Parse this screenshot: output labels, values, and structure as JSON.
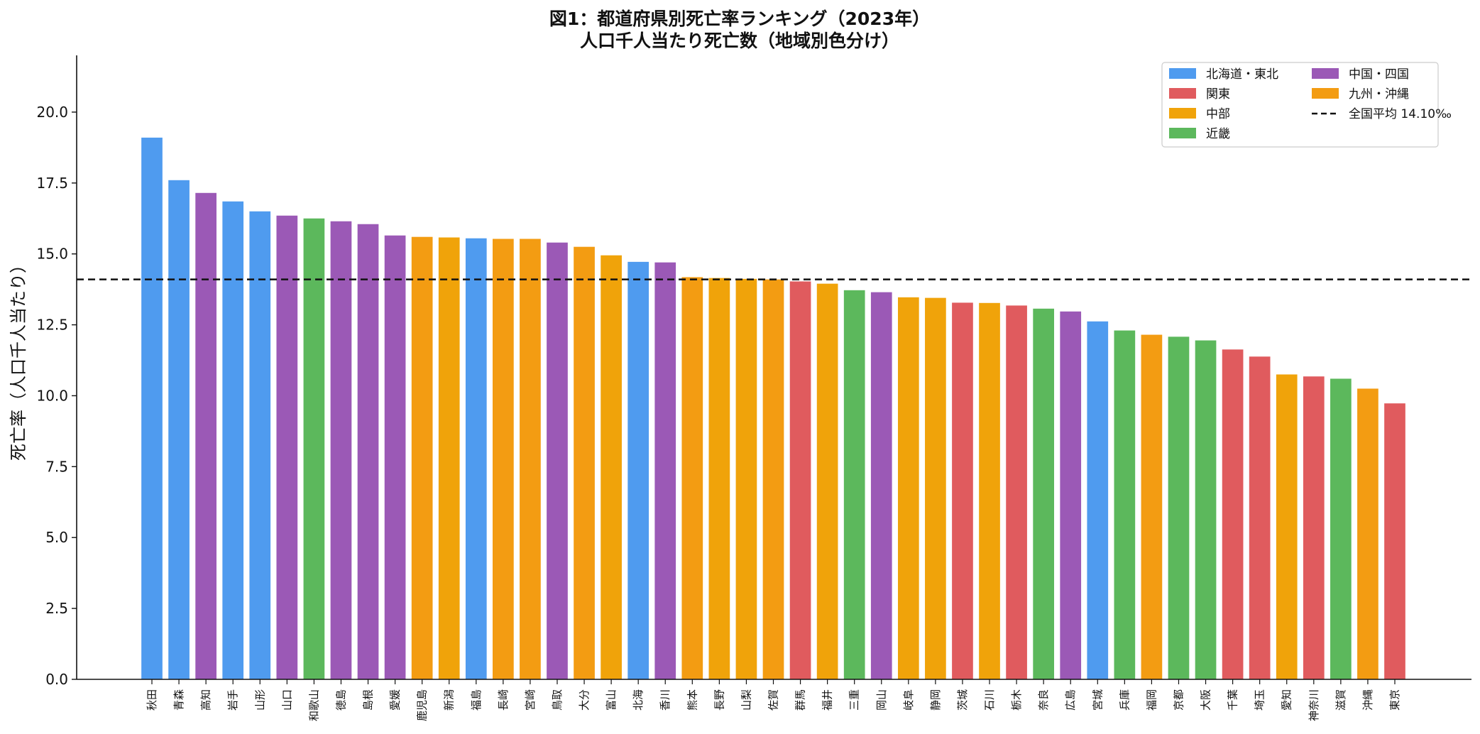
{
  "chart_data": {
    "type": "bar",
    "title": "図1：都道府県別死亡率ランキング（2023年）",
    "subtitle": "人口千人当たり死亡数（地域別色分け）",
    "xlabel": "",
    "ylabel": "死亡率（人口千人当たり）",
    "ylim": [
      0,
      22
    ],
    "yticks": [
      "0.0",
      "2.5",
      "5.0",
      "7.5",
      "10.0",
      "12.5",
      "15.0",
      "17.5",
      "20.0"
    ],
    "grid": false,
    "legend_position": "top-right",
    "regions": [
      {
        "key": "hokkaido_tohoku",
        "name": "北海道・東北",
        "color": "#4F9BEF"
      },
      {
        "key": "kanto",
        "name": "関東",
        "color": "#E05B5E"
      },
      {
        "key": "chubu",
        "name": "中部",
        "color": "#F0A30A"
      },
      {
        "key": "kinki",
        "name": "近畿",
        "color": "#5CB85C"
      },
      {
        "key": "chugoku_shikoku",
        "name": "中国・四国",
        "color": "#9B59B6"
      },
      {
        "key": "kyushu_okinawa",
        "name": "九州・沖縄",
        "color": "#F39C12"
      }
    ],
    "average": {
      "label": "全国平均 14.10‰",
      "value": 14.1,
      "style": "dashed",
      "color": "#111111"
    },
    "categories": [
      "秋田",
      "青森",
      "高知",
      "岩手",
      "山形",
      "山口",
      "和歌山",
      "徳島",
      "島根",
      "愛媛",
      "鹿児島",
      "新潟",
      "福島",
      "長崎",
      "宮崎",
      "鳥取",
      "大分",
      "富山",
      "北海",
      "香川",
      "熊本",
      "長野",
      "山梨",
      "佐賀",
      "群馬",
      "福井",
      "三重",
      "岡山",
      "岐阜",
      "静岡",
      "茨城",
      "石川",
      "栃木",
      "奈良",
      "広島",
      "宮城",
      "兵庫",
      "福岡",
      "京都",
      "大阪",
      "千葉",
      "埼玉",
      "愛知",
      "神奈川",
      "滋賀",
      "沖縄",
      "東京"
    ],
    "values": [
      19.1,
      17.6,
      17.15,
      16.85,
      16.5,
      16.35,
      16.25,
      16.15,
      16.05,
      15.65,
      15.6,
      15.58,
      15.55,
      15.53,
      15.53,
      15.4,
      15.25,
      14.95,
      14.72,
      14.7,
      14.18,
      14.15,
      14.12,
      14.1,
      14.03,
      13.95,
      13.72,
      13.65,
      13.47,
      13.45,
      13.28,
      13.27,
      13.18,
      13.07,
      12.97,
      12.62,
      12.3,
      12.15,
      12.08,
      11.95,
      11.63,
      11.38,
      10.75,
      10.68,
      10.6,
      10.25,
      9.73
    ],
    "bar_regions": [
      "hokkaido_tohoku",
      "hokkaido_tohoku",
      "chugoku_shikoku",
      "hokkaido_tohoku",
      "hokkaido_tohoku",
      "chugoku_shikoku",
      "kinki",
      "chugoku_shikoku",
      "chugoku_shikoku",
      "chugoku_shikoku",
      "kyushu_okinawa",
      "chubu",
      "hokkaido_tohoku",
      "kyushu_okinawa",
      "kyushu_okinawa",
      "chugoku_shikoku",
      "kyushu_okinawa",
      "chubu",
      "hokkaido_tohoku",
      "chugoku_shikoku",
      "kyushu_okinawa",
      "chubu",
      "chubu",
      "kyushu_okinawa",
      "kanto",
      "chubu",
      "kinki",
      "chugoku_shikoku",
      "chubu",
      "chubu",
      "kanto",
      "chubu",
      "kanto",
      "kinki",
      "chugoku_shikoku",
      "hokkaido_tohoku",
      "kinki",
      "kyushu_okinawa",
      "kinki",
      "kinki",
      "kanto",
      "kanto",
      "chubu",
      "kanto",
      "kinki",
      "kyushu_okinawa",
      "kanto"
    ]
  }
}
